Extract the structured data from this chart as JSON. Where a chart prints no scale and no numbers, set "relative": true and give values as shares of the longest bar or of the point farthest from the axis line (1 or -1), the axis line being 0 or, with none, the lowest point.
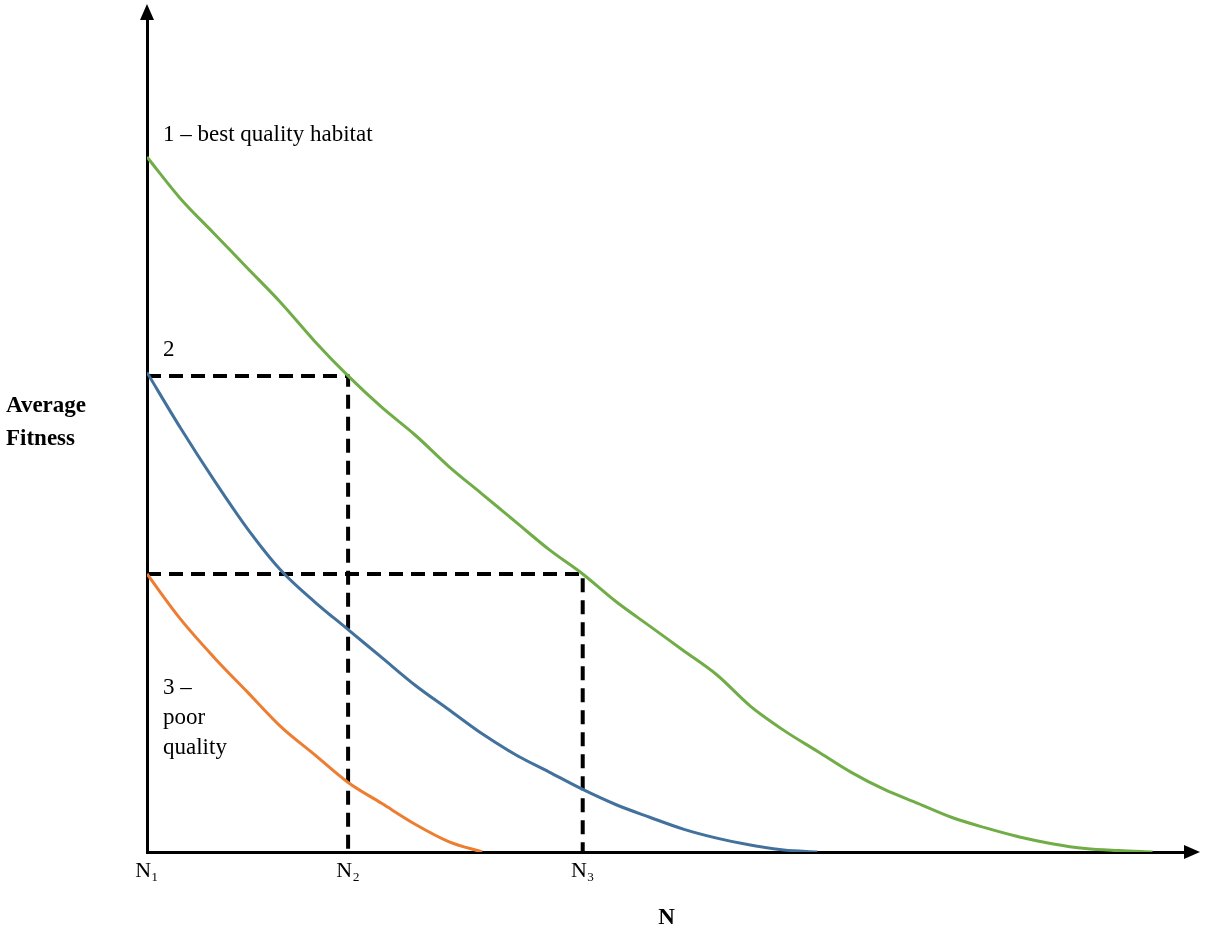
{
  "chart_data": {
    "type": "line",
    "xlabel": "N",
    "ylabel": "Average Fitness",
    "relative": true,
    "categories": [
      "N₁",
      null,
      null,
      null,
      null,
      null,
      "N₂",
      null,
      null,
      null,
      null,
      null,
      null,
      "N₃",
      null,
      null,
      null,
      null,
      null,
      null,
      null,
      null,
      null,
      null,
      null,
      null,
      null,
      null,
      null,
      null,
      null,
      null
    ],
    "grid": false,
    "legend": false,
    "marker": "none",
    "series": [
      {
        "name": "1 – best quality habitat",
        "color": "#70ad47",
        "values": [
          1,
          0.94,
          0.89,
          0.84,
          0.79,
          0.735,
          0.685,
          0.64,
          0.6,
          0.555,
          0.515,
          0.475,
          0.435,
          0.4,
          0.36,
          0.325,
          0.29,
          0.255,
          0.21,
          0.175,
          0.145,
          0.115,
          0.09,
          0.07,
          0.05,
          0.035,
          0.022,
          0.012,
          0.005,
          0.002,
          0,
          null
        ]
      },
      {
        "name": "2",
        "color": "#41719c",
        "values": [
          0.69,
          0.61,
          0.535,
          0.465,
          0.405,
          0.36,
          0.32,
          0.28,
          0.24,
          0.205,
          0.17,
          0.14,
          0.115,
          0.09,
          0.068,
          0.05,
          0.033,
          0.02,
          0.01,
          0.003,
          0,
          null,
          null,
          null,
          null,
          null,
          null,
          null,
          null,
          null,
          null,
          null
        ]
      },
      {
        "name": "3 – poor quality",
        "color": "#ed7d31",
        "values": [
          0.4,
          0.335,
          0.28,
          0.23,
          0.18,
          0.14,
          0.1,
          0.07,
          0.04,
          0.015,
          0,
          null,
          null,
          null,
          null,
          null,
          null,
          null,
          null,
          null,
          null,
          null,
          null,
          null,
          null,
          null,
          null,
          null,
          null,
          null,
          null,
          null
        ]
      },
      {
        "color": "#000000",
        "line_style": "dashed",
        "x": [
          "N₁",
          "N₂",
          "N₂"
        ],
        "values": [
          0.685,
          0.685,
          0
        ]
      },
      {
        "color": "#000000",
        "line_style": "dashed",
        "x": [
          "N₁",
          "N₃",
          "N₃"
        ],
        "values": [
          0.4,
          0.4,
          0
        ]
      }
    ]
  }
}
